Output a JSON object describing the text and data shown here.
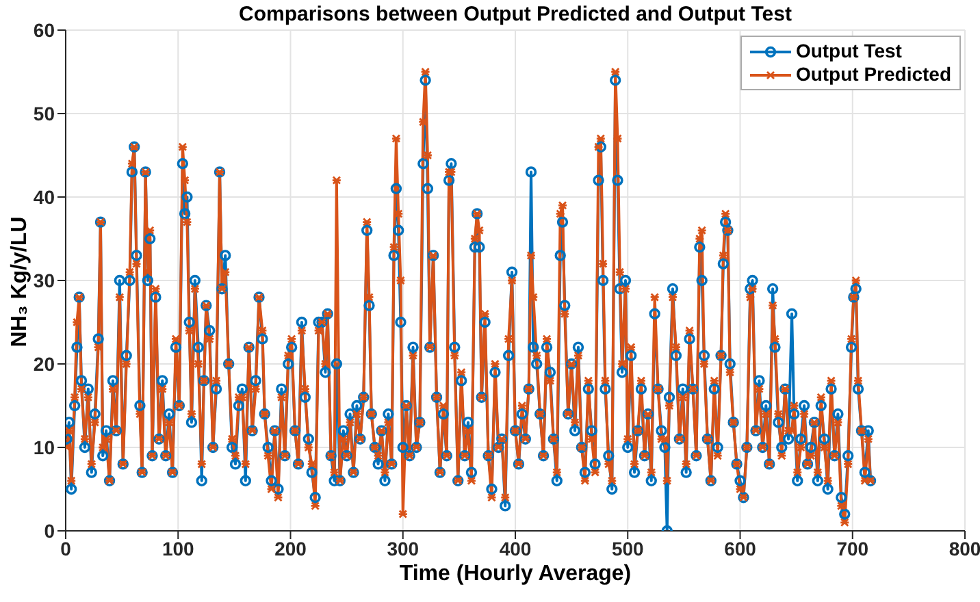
{
  "chart_data": {
    "type": "line",
    "title": "Comparisons between Output Predicted and Output Test",
    "xlabel": "Time (Hourly Average)",
    "ylabel": "NH₃ Kg/y/LU",
    "x": [
      1,
      3,
      5,
      8,
      10,
      12,
      14,
      17,
      20,
      23,
      26,
      29,
      31,
      33,
      36,
      39,
      42,
      45,
      48,
      51,
      54,
      57,
      59,
      61,
      63,
      66,
      68,
      71,
      73,
      75,
      77,
      80,
      83,
      86,
      89,
      92,
      95,
      98,
      101,
      104,
      106,
      108,
      110,
      112,
      115,
      118,
      121,
      123,
      125,
      128,
      131,
      134,
      137,
      139,
      142,
      145,
      148,
      151,
      154,
      157,
      160,
      163,
      166,
      169,
      172,
      175,
      177,
      180,
      183,
      186,
      189,
      192,
      195,
      198,
      201,
      204,
      207,
      210,
      213,
      216,
      219,
      222,
      225,
      228,
      231,
      233,
      236,
      239,
      241,
      244,
      247,
      250,
      253,
      256,
      259,
      262,
      265,
      268,
      270,
      272,
      275,
      278,
      281,
      284,
      287,
      290,
      292,
      294,
      296,
      298,
      300,
      303,
      306,
      309,
      312,
      315,
      318,
      320,
      322,
      324,
      327,
      330,
      333,
      336,
      339,
      341,
      343,
      346,
      349,
      352,
      355,
      358,
      361,
      364,
      366,
      368,
      370,
      373,
      376,
      379,
      382,
      385,
      388,
      391,
      394,
      397,
      400,
      403,
      406,
      409,
      412,
      414,
      416,
      419,
      422,
      425,
      428,
      431,
      434,
      437,
      440,
      442,
      444,
      447,
      450,
      453,
      456,
      459,
      462,
      465,
      468,
      471,
      474,
      476,
      478,
      480,
      483,
      486,
      489,
      491,
      493,
      495,
      498,
      500,
      503,
      506,
      509,
      512,
      515,
      518,
      521,
      524,
      527,
      530,
      533,
      535,
      537,
      540,
      543,
      546,
      549,
      552,
      555,
      558,
      561,
      564,
      566,
      568,
      571,
      574,
      577,
      580,
      583,
      585,
      587,
      589,
      591,
      594,
      597,
      600,
      603,
      606,
      609,
      611,
      614,
      617,
      620,
      623,
      626,
      629,
      631,
      634,
      637,
      640,
      643,
      646,
      648,
      651,
      654,
      657,
      660,
      663,
      666,
      669,
      672,
      675,
      678,
      681,
      684,
      687,
      690,
      693,
      696,
      699,
      701,
      703,
      705,
      708,
      711,
      714,
      716
    ],
    "series": [
      {
        "name": "Output Test",
        "color": "#0072bd",
        "marker": "circle",
        "values": [
          11,
          13,
          5,
          15,
          22,
          28,
          18,
          10,
          17,
          7,
          14,
          23,
          37,
          9,
          12,
          6,
          18,
          12,
          30,
          8,
          21,
          30,
          43,
          46,
          33,
          15,
          7,
          43,
          30,
          35,
          9,
          28,
          11,
          18,
          9,
          14,
          7,
          22,
          15,
          44,
          38,
          40,
          25,
          13,
          30,
          22,
          6,
          18,
          27,
          24,
          10,
          17,
          43,
          29,
          33,
          20,
          10,
          8,
          15,
          17,
          6,
          22,
          12,
          18,
          28,
          23,
          14,
          10,
          6,
          12,
          5,
          17,
          9,
          20,
          22,
          12,
          8,
          25,
          16,
          11,
          7,
          4,
          25,
          25,
          19,
          26,
          9,
          6,
          20,
          6,
          12,
          9,
          14,
          7,
          15,
          11,
          16,
          36,
          27,
          14,
          10,
          8,
          12,
          6,
          14,
          8,
          33,
          41,
          36,
          25,
          10,
          15,
          9,
          22,
          10,
          13,
          44,
          54,
          41,
          22,
          33,
          16,
          7,
          14,
          9,
          42,
          44,
          22,
          6,
          18,
          9,
          13,
          7,
          34,
          38,
          34,
          16,
          25,
          9,
          5,
          19,
          10,
          11,
          3,
          21,
          31,
          12,
          8,
          14,
          11,
          17,
          43,
          22,
          20,
          14,
          9,
          22,
          19,
          11,
          6,
          33,
          37,
          27,
          14,
          20,
          12,
          22,
          10,
          7,
          17,
          12,
          8,
          42,
          46,
          30,
          17,
          9,
          5,
          54,
          42,
          29,
          19,
          30,
          10,
          21,
          7,
          12,
          17,
          9,
          14,
          6,
          26,
          17,
          12,
          10,
          0,
          16,
          29,
          21,
          11,
          17,
          7,
          23,
          17,
          9,
          34,
          30,
          21,
          11,
          6,
          17,
          10,
          21,
          32,
          37,
          36,
          20,
          13,
          8,
          6,
          4,
          10,
          29,
          30,
          12,
          18,
          10,
          15,
          8,
          29,
          22,
          13,
          10,
          17,
          11,
          26,
          14,
          6,
          11,
          15,
          8,
          10,
          13,
          6,
          15,
          11,
          5,
          17,
          9,
          14,
          4,
          2,
          9,
          22,
          28,
          29,
          17,
          12,
          7,
          12,
          6
        ]
      },
      {
        "name": "Output Predicted",
        "color": "#d95319",
        "marker": "cross",
        "values": [
          10,
          12,
          6,
          16,
          25,
          28,
          17,
          11,
          16,
          8,
          13,
          22,
          37,
          10,
          11,
          6,
          17,
          12,
          28,
          8,
          20,
          31,
          44,
          46,
          32,
          14,
          7,
          43,
          31,
          36,
          9,
          29,
          11,
          17,
          9,
          13,
          7,
          23,
          15,
          46,
          42,
          37,
          24,
          14,
          29,
          20,
          8,
          18,
          27,
          23,
          10,
          18,
          43,
          29,
          31,
          20,
          11,
          9,
          16,
          16,
          8,
          22,
          12,
          17,
          28,
          24,
          14,
          9,
          5,
          12,
          4,
          16,
          9,
          21,
          23,
          12,
          8,
          24,
          17,
          10,
          8,
          3,
          24,
          25,
          20,
          26,
          9,
          7,
          42,
          6,
          11,
          9,
          13,
          7,
          14,
          11,
          16,
          37,
          28,
          14,
          10,
          9,
          12,
          7,
          13,
          8,
          34,
          47,
          38,
          30,
          2,
          15,
          9,
          21,
          10,
          13,
          49,
          55,
          45,
          22,
          33,
          16,
          7,
          15,
          9,
          43,
          43,
          21,
          6,
          19,
          9,
          12,
          6,
          35,
          38,
          36,
          16,
          26,
          9,
          4,
          20,
          10,
          11,
          4,
          23,
          30,
          12,
          8,
          15,
          11,
          17,
          33,
          28,
          21,
          14,
          9,
          23,
          18,
          11,
          7,
          38,
          39,
          26,
          14,
          20,
          13,
          21,
          10,
          6,
          18,
          11,
          7,
          46,
          47,
          32,
          18,
          8,
          6,
          55,
          47,
          31,
          20,
          29,
          11,
          22,
          8,
          12,
          18,
          9,
          14,
          7,
          28,
          17,
          11,
          11,
          6,
          15,
          28,
          22,
          11,
          16,
          8,
          24,
          17,
          9,
          35,
          36,
          20,
          11,
          6,
          18,
          9,
          21,
          33,
          38,
          36,
          19,
          13,
          8,
          5,
          4,
          10,
          28,
          29,
          12,
          17,
          10,
          14,
          8,
          27,
          23,
          14,
          9,
          17,
          12,
          12,
          15,
          7,
          10,
          14,
          8,
          9,
          13,
          7,
          16,
          10,
          6,
          18,
          9,
          13,
          3,
          1,
          8,
          23,
          28,
          30,
          18,
          12,
          6,
          11,
          6
        ]
      }
    ],
    "xlim": [
      0,
      800
    ],
    "xticks": [
      0,
      100,
      200,
      300,
      400,
      500,
      600,
      700,
      800
    ],
    "ylim": [
      0,
      60
    ],
    "yticks": [
      0,
      10,
      20,
      30,
      40,
      50,
      60
    ],
    "grid": true,
    "legend": "top right",
    "line_style": "solid"
  }
}
